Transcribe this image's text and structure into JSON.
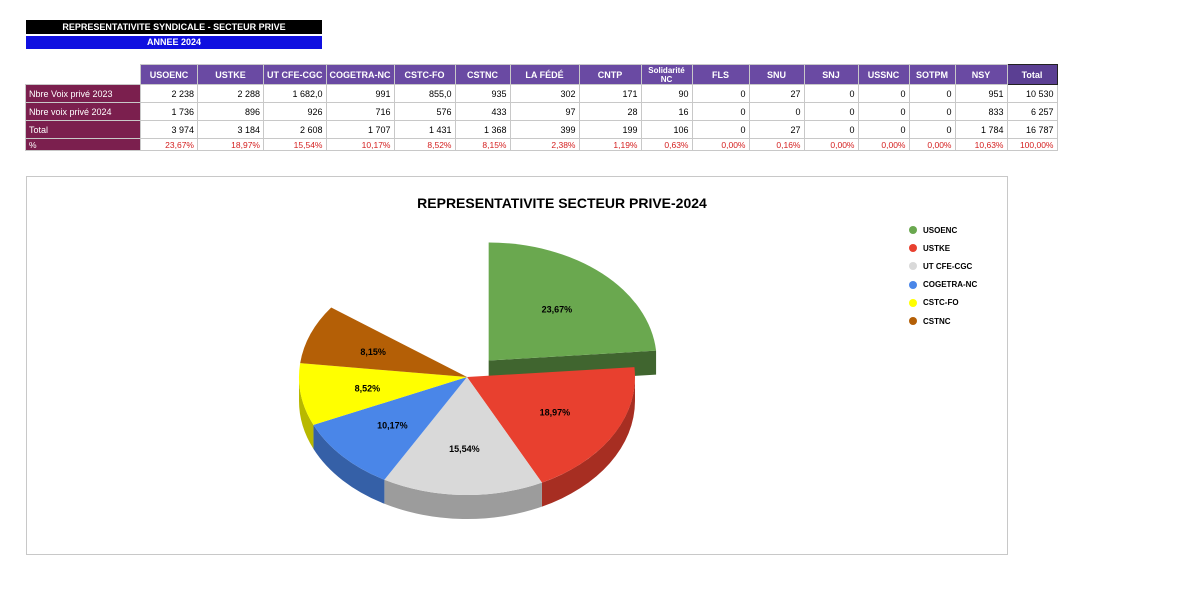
{
  "header": {
    "title": "REPRESENTATIVITE SYNDICALE - SECTEUR PRIVE",
    "year": "ANNEE 2024"
  },
  "table": {
    "columns": [
      "USOENC",
      "USTKE",
      "UT CFE-CGC",
      "COGETRA-NC",
      "CSTC-FO",
      "CSTNC",
      "LA FÉDÉ",
      "CNTP",
      "Solidarité NC",
      "FLS",
      "SNU",
      "SNJ",
      "USSNC",
      "SOTPM",
      "NSY",
      "Total"
    ],
    "rows": [
      {
        "label": "Nbre Voix privé 2023",
        "cells": [
          "2 238",
          "2 288",
          "1 682,0",
          "991",
          "855,0",
          "935",
          "302",
          "171",
          "90",
          "0",
          "27",
          "0",
          "0",
          "0",
          "951",
          "10 530"
        ]
      },
      {
        "label": "Nbre voix privé 2024",
        "cells": [
          "1 736",
          "896",
          "926",
          "716",
          "576",
          "433",
          "97",
          "28",
          "16",
          "0",
          "0",
          "0",
          "0",
          "0",
          "833",
          "6 257"
        ]
      },
      {
        "label": "Total",
        "cells": [
          "3 974",
          "3 184",
          "2 608",
          "1 707",
          "1 431",
          "1 368",
          "399",
          "199",
          "106",
          "0",
          "27",
          "0",
          "0",
          "0",
          "1 784",
          "16 787"
        ]
      },
      {
        "label": "%",
        "cells": [
          "23,67%",
          "18,97%",
          "15,54%",
          "10,17%",
          "8,52%",
          "8,15%",
          "2,38%",
          "1,19%",
          "0,63%",
          "0,00%",
          "0,16%",
          "0,00%",
          "0,00%",
          "0,00%",
          "10,63%",
          "100,00%"
        ]
      }
    ]
  },
  "chart_data": {
    "type": "pie",
    "title": "REPRESENTATIVITE  SECTEUR PRIVE-2024",
    "legend_position": "right",
    "exploded": "USOENC",
    "slices": [
      {
        "name": "USOENC",
        "value": 23.67,
        "label": "23,67%",
        "color": "#6aa84f"
      },
      {
        "name": "USTKE",
        "value": 18.97,
        "label": "18,97%",
        "color": "#e8402f"
      },
      {
        "name": "UT CFE-CGC",
        "value": 15.54,
        "label": "15,54%",
        "color": "#d9d9d9"
      },
      {
        "name": "COGETRA-NC",
        "value": 10.17,
        "label": "10,17%",
        "color": "#4a86e8"
      },
      {
        "name": "CSTC-FO",
        "value": 8.52,
        "label": "8,52%",
        "color": "#ffff00"
      },
      {
        "name": "CSTNC",
        "value": 8.15,
        "label": "8,15%",
        "color": "#b45f06"
      }
    ]
  }
}
